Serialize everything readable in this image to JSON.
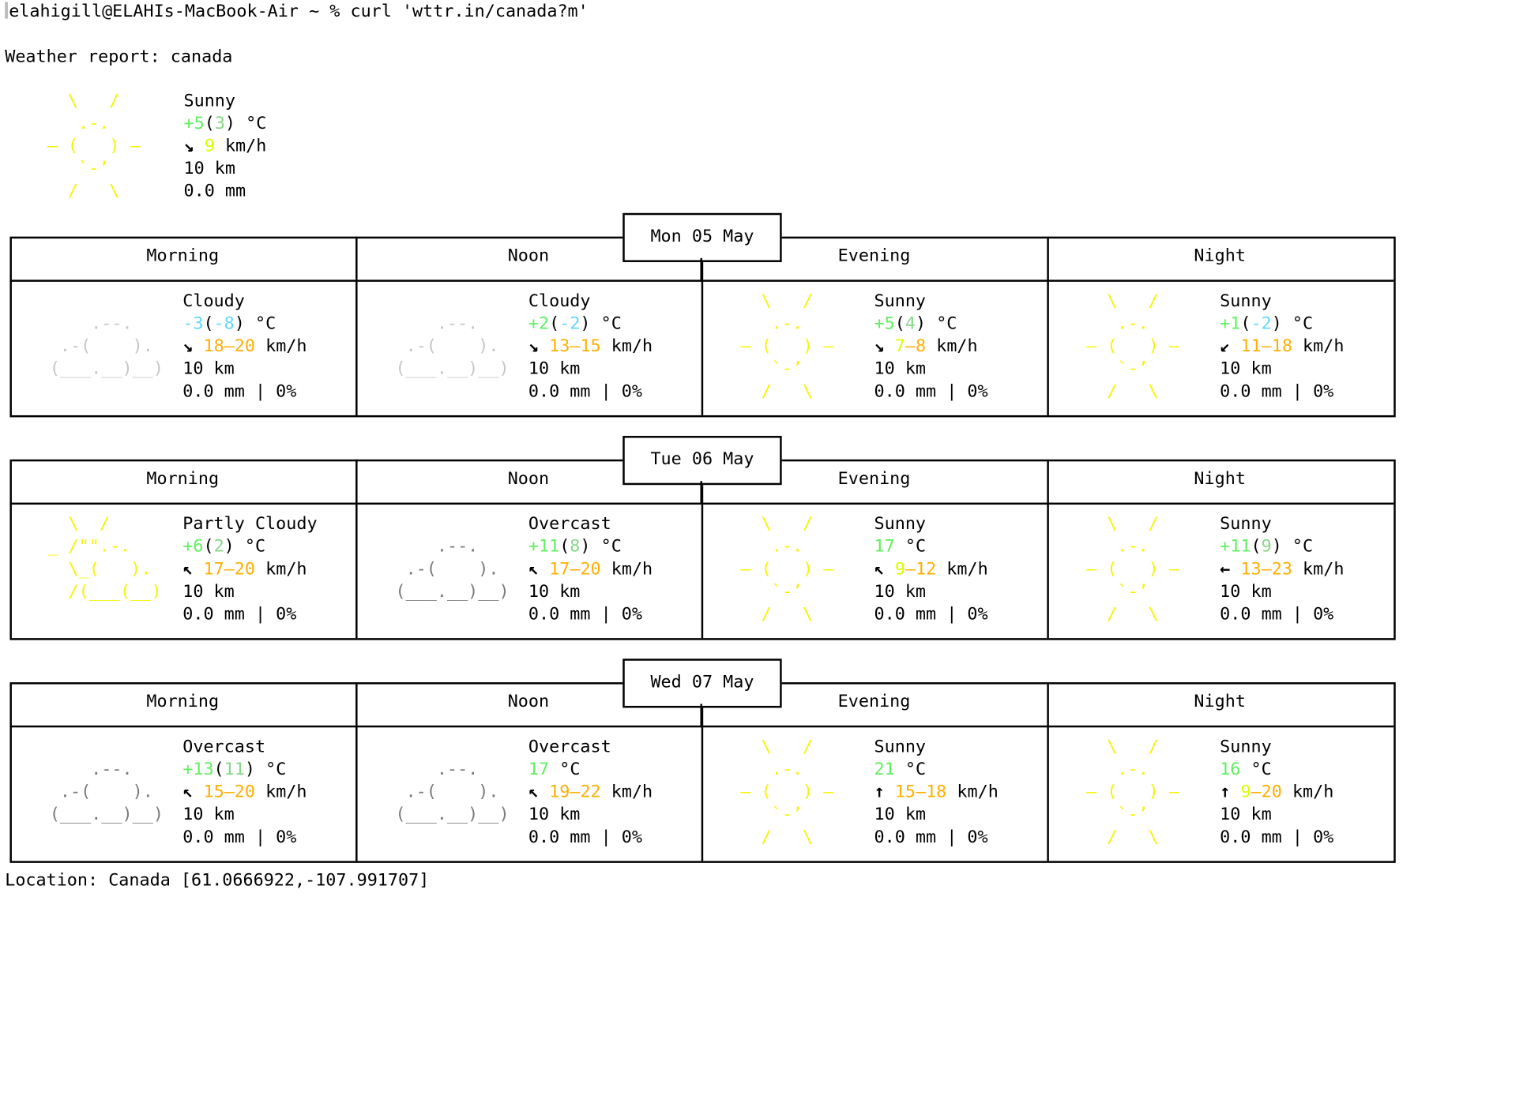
{
  "terminal": {
    "prompt": "elahigill@ELAHIs-MacBook-Air ~ % curl 'wttr.in/canada?m'",
    "report_title": "Weather report: canada",
    "location": "Location: Canada [61.0666922,-107.991707]"
  },
  "current": {
    "condition": "Sunny",
    "temp": "+5",
    "feels": "3",
    "temp_unit": "°C",
    "wind_arrow": "↘",
    "wind": "9",
    "wind_unit": "km/h",
    "visibility": "10 km",
    "precip": "0.0 mm",
    "icon": "sun-icon"
  },
  "periods": [
    "Morning",
    "Noon",
    "Evening",
    "Night"
  ],
  "days": [
    {
      "date": "Mon 05 May",
      "cells": [
        {
          "icon": "cloud-icon",
          "art": "cloudy-light",
          "condition": "Cloudy",
          "temp": "-3",
          "feels": "-8",
          "unit": "°C",
          "arrow": "↘",
          "wind_lo": "18",
          "wind_hi": "20",
          "wind_unit": "km/h",
          "visibility": "10 km",
          "precip": "0.0 mm | 0%"
        },
        {
          "icon": "cloud-icon",
          "art": "cloudy-light",
          "condition": "Cloudy",
          "temp": "+2",
          "feels": "-2",
          "unit": "°C",
          "arrow": "↘",
          "wind_lo": "13",
          "wind_hi": "15",
          "wind_unit": "km/h",
          "visibility": "10 km",
          "precip": "0.0 mm | 0%"
        },
        {
          "icon": "sun-icon",
          "art": "sunny",
          "condition": "Sunny",
          "temp": "+5",
          "feels": "4",
          "unit": "°C",
          "arrow": "↘",
          "wind_lo": "7",
          "wind_hi": "8",
          "wind_unit": "km/h",
          "visibility": "10 km",
          "precip": "0.0 mm | 0%"
        },
        {
          "icon": "sun-icon",
          "art": "sunny",
          "condition": "Sunny",
          "temp": "+1",
          "feels": "-2",
          "unit": "°C",
          "arrow": "↙",
          "wind_lo": "11",
          "wind_hi": "18",
          "wind_unit": "km/h",
          "visibility": "10 km",
          "precip": "0.0 mm | 0%"
        }
      ]
    },
    {
      "date": "Tue 06 May",
      "cells": [
        {
          "icon": "partly-cloudy-icon",
          "art": "partly",
          "condition": "Partly Cloudy",
          "temp": "+6",
          "feels": "2",
          "unit": "°C",
          "arrow": "↖",
          "wind_lo": "17",
          "wind_hi": "20",
          "wind_unit": "km/h",
          "visibility": "10 km",
          "precip": "0.0 mm | 0%"
        },
        {
          "icon": "overcast-icon",
          "art": "overcast",
          "condition": "Overcast",
          "temp": "+11",
          "feels": "8",
          "unit": "°C",
          "arrow": "↖",
          "wind_lo": "17",
          "wind_hi": "20",
          "wind_unit": "km/h",
          "visibility": "10 km",
          "precip": "0.0 mm | 0%"
        },
        {
          "icon": "sun-icon",
          "art": "sunny",
          "condition": "Sunny",
          "temp": "17",
          "feels": "",
          "unit": "°C",
          "arrow": "↖",
          "wind_lo": "9",
          "wind_hi": "12",
          "wind_unit": "km/h",
          "visibility": "10 km",
          "precip": "0.0 mm | 0%"
        },
        {
          "icon": "sun-icon",
          "art": "sunny",
          "condition": "Sunny",
          "temp": "+11",
          "feels": "9",
          "unit": "°C",
          "arrow": "←",
          "wind_lo": "13",
          "wind_hi": "23",
          "wind_unit": "km/h",
          "visibility": "10 km",
          "precip": "0.0 mm | 0%"
        }
      ]
    },
    {
      "date": "Wed 07 May",
      "cells": [
        {
          "icon": "overcast-icon",
          "art": "overcast",
          "condition": "Overcast",
          "temp": "+13",
          "feels": "11",
          "unit": "°C",
          "arrow": "↖",
          "wind_lo": "15",
          "wind_hi": "20",
          "wind_unit": "km/h",
          "visibility": "10 km",
          "precip": "0.0 mm | 0%"
        },
        {
          "icon": "overcast-icon",
          "art": "overcast",
          "condition": "Overcast",
          "temp": "17",
          "feels": "",
          "unit": "°C",
          "arrow": "↖",
          "wind_lo": "19",
          "wind_hi": "22",
          "wind_unit": "km/h",
          "visibility": "10 km",
          "precip": "0.0 mm | 0%"
        },
        {
          "icon": "sun-icon",
          "art": "sunny",
          "condition": "Sunny",
          "temp": "21",
          "feels": "",
          "unit": "°C",
          "arrow": "↑",
          "wind_lo": "15",
          "wind_hi": "18",
          "wind_unit": "km/h",
          "visibility": "10 km",
          "precip": "0.0 mm | 0%"
        },
        {
          "icon": "sun-icon",
          "art": "sunny",
          "condition": "Sunny",
          "temp": "16",
          "feels": "",
          "unit": "°C",
          "arrow": "↑",
          "wind_lo": "9",
          "wind_hi": "20",
          "wind_unit": "km/h",
          "visibility": "10 km",
          "precip": "0.0 mm | 0%"
        }
      ]
    }
  ],
  "colors": {
    "sun": "#f7f400",
    "temp_warm": "#5ff05f",
    "temp_cold": "#5fd7ff",
    "wind": "#ffaf00",
    "cloud_light": "#c6c6c6",
    "cloud_dark": "#7a7a7a"
  }
}
